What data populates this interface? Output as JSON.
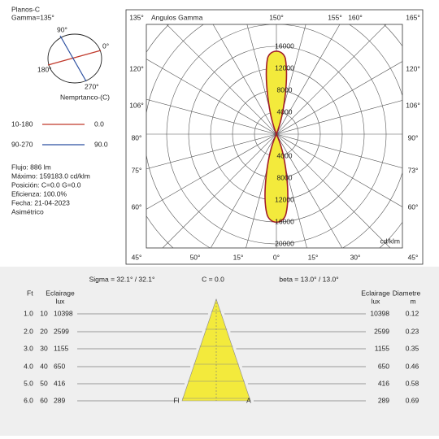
{
  "planes": {
    "title": "Planos-C",
    "gamma": "Gamma=135°",
    "angles": [
      "90°",
      "0°",
      "180°",
      "270°"
    ],
    "caption": "Nemprtanco-(C)"
  },
  "legend": [
    {
      "range": "10-180",
      "value": "0.0",
      "color": "#c0392b"
    },
    {
      "range": "90-270",
      "value": "90.0",
      "color": "#2b4fa0"
    }
  ],
  "info": [
    "Flujo: 886 lm",
    "Máximo: 159183.0 cd/klm",
    "Posición: C=0.0 G=0.0",
    "Eficienza: 100.0%",
    "Fecha: 21-04-2023",
    "Asimétrico"
  ],
  "polar": {
    "title": "Angulos Gamma",
    "top": [
      "135°",
      "150°",
      "155°",
      "160°",
      "165°"
    ],
    "left": [
      "120°",
      "106°",
      "80°",
      "75°",
      "60°"
    ],
    "right": [
      "120°",
      "106°",
      "90°",
      "73°",
      "60°"
    ],
    "bottom": [
      "45°",
      "50°",
      "15°",
      "0°",
      "15°",
      "30°",
      "45°"
    ],
    "upper_radial": [
      "16000",
      "12000",
      "8000",
      "4000"
    ],
    "lower_radial": [
      "4000",
      "8000",
      "12000",
      "16000",
      "20000"
    ],
    "unit": "cd/klm"
  },
  "cone": {
    "sigma": "Sigma = 32.1° / 32.1°",
    "c": "C = 0.0",
    "beta": "beta = 13.0° / 13.0°",
    "headers": {
      "ft": "Ft",
      "lux_left": "Eclairage",
      "lux_left_unit": "lux",
      "lux_right": "Eclairage",
      "lux_right_unit": "lux",
      "diam": "Diametre",
      "diam_unit": "m"
    },
    "rows": [
      [
        "1.0",
        "10",
        "10398",
        "10398",
        "0.12"
      ],
      [
        "2.0",
        "20",
        "2599",
        "2599",
        "0.23"
      ],
      [
        "3.0",
        "30",
        "1155",
        "1155",
        "0.35"
      ],
      [
        "4.0",
        "40",
        "650",
        "650",
        "0.46"
      ],
      [
        "5.0",
        "50",
        "416",
        "416",
        "0.58"
      ],
      [
        "6.0",
        "60",
        "289",
        "289",
        "0.69"
      ]
    ],
    "fl": "Fl",
    "a": "A"
  }
}
